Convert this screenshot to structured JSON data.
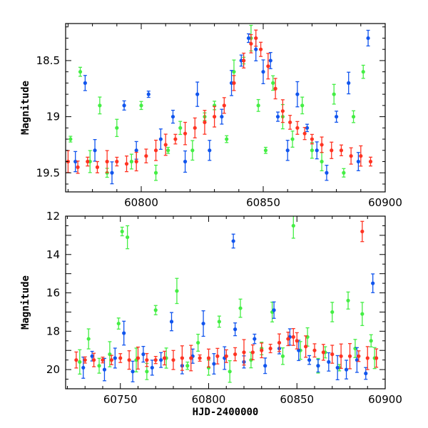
{
  "colors": {
    "green": "#44ee44",
    "blue": "#1155ee",
    "red": "#ff3322",
    "axis": "#000000"
  },
  "chart_data": [
    {
      "type": "scatter",
      "panel": "top",
      "title": "",
      "xlabel": "",
      "ylabel": "Magnitude",
      "xlim": [
        60769,
        60900
      ],
      "ylim": [
        19.67,
        18.17
      ],
      "y_inverted": true,
      "x_ticks": [
        60800,
        60850,
        60900
      ],
      "y_ticks": [
        18.5,
        19,
        19.5
      ],
      "grid": false,
      "error_bars": true,
      "series": [
        {
          "color_key": "green",
          "x": [
            60771,
            60775,
            60779,
            60783,
            60786,
            60790,
            60796,
            60800,
            60806,
            60811,
            60816,
            60821,
            60826,
            60830,
            60835,
            60838,
            60842,
            60845,
            60848,
            60851,
            60854,
            60858,
            60862,
            60866,
            60870,
            60874,
            60879,
            60883,
            60887,
            60891
          ],
          "y": [
            19.2,
            18.6,
            19.4,
            18.9,
            19.5,
            19.1,
            19.4,
            18.9,
            19.5,
            19.3,
            19.1,
            19.3,
            19.0,
            18.9,
            19.2,
            18.6,
            18.5,
            18.3,
            18.9,
            19.3,
            18.7,
            19.0,
            19.2,
            18.9,
            19.3,
            19.4,
            18.8,
            19.5,
            19.0,
            18.6
          ]
        },
        {
          "color_key": "blue",
          "x": [
            60773,
            60777,
            60781,
            60788,
            60793,
            60798,
            60803,
            60808,
            60813,
            60818,
            60823,
            60828,
            60833,
            60837,
            60841,
            60844,
            60847,
            60850,
            60853,
            60856,
            60860,
            60864,
            60868,
            60872,
            60876,
            60880,
            60885,
            60889,
            60893
          ],
          "y": [
            19.4,
            18.7,
            19.3,
            19.5,
            18.9,
            19.3,
            18.8,
            19.2,
            19.0,
            19.4,
            18.8,
            19.3,
            19.0,
            18.7,
            18.5,
            18.3,
            18.4,
            18.6,
            18.5,
            19.0,
            19.3,
            18.8,
            19.1,
            19.3,
            19.5,
            19.0,
            18.7,
            19.4,
            18.3
          ]
        },
        {
          "color_key": "red",
          "x": [
            60770,
            60774,
            60778,
            60782,
            60786,
            60790,
            60794,
            60798,
            60802,
            60806,
            60810,
            60814,
            60818,
            60822,
            60826,
            60830,
            60834,
            60838,
            60842,
            60845,
            60847,
            60849,
            60852,
            60855,
            60858,
            60861,
            60864,
            60867,
            60870,
            60874,
            60878,
            60882,
            60886,
            60890,
            60894
          ],
          "y": [
            19.4,
            19.45,
            19.4,
            19.45,
            19.4,
            19.4,
            19.42,
            19.4,
            19.35,
            19.3,
            19.25,
            19.2,
            19.15,
            19.1,
            19.05,
            19.0,
            18.9,
            18.7,
            18.5,
            18.35,
            18.3,
            18.4,
            18.55,
            18.75,
            18.95,
            19.05,
            19.1,
            19.15,
            19.2,
            19.25,
            19.3,
            19.3,
            19.35,
            19.35,
            19.4
          ]
        }
      ]
    },
    {
      "type": "scatter",
      "panel": "bottom",
      "title": "",
      "xlabel": "HJD-2400000",
      "ylabel": "Magnitude",
      "xlim": [
        60719,
        60900
      ],
      "ylim": [
        21,
        12
      ],
      "y_inverted": true,
      "x_ticks": [
        60750,
        60800,
        60850,
        60900
      ],
      "y_ticks": [
        12,
        14,
        16,
        18,
        20
      ],
      "grid": false,
      "error_bars": true,
      "series": [
        {
          "color_key": "green",
          "x": [
            60727,
            60732,
            60738,
            60744,
            60749,
            60751,
            60754,
            60759,
            60765,
            60770,
            60776,
            60782,
            60788,
            60794,
            60800,
            60806,
            60812,
            60818,
            60824,
            60830,
            60836,
            60842,
            60848,
            60852,
            60856,
            60862,
            60866,
            60870,
            60874,
            60879,
            60883,
            60887,
            60892,
            60894
          ],
          "y": [
            19.6,
            18.4,
            19.8,
            19.2,
            17.6,
            12.8,
            13.1,
            19.5,
            20.1,
            16.9,
            19.4,
            15.9,
            19.8,
            18.6,
            19.9,
            17.5,
            20.1,
            16.8,
            19.5,
            18.9,
            17.0,
            19.3,
            12.5,
            19.0,
            18.3,
            19.8,
            19.1,
            17.0,
            19.9,
            16.4,
            18.9,
            17.1,
            18.5,
            19.4
          ]
        },
        {
          "color_key": "blue",
          "x": [
            60729,
            60734,
            60741,
            60747,
            60752,
            60757,
            60763,
            60768,
            60773,
            60779,
            60785,
            60791,
            60797,
            60803,
            60809,
            60814,
            60815,
            60820,
            60826,
            60832,
            60837,
            60840,
            60846,
            60851,
            60857,
            60862,
            60868,
            60873,
            60878,
            60884,
            60889,
            60893
          ],
          "y": [
            19.9,
            19.3,
            20.0,
            19.4,
            18.1,
            20.1,
            19.2,
            19.9,
            19.5,
            17.5,
            19.8,
            19.3,
            17.6,
            19.7,
            19.4,
            13.3,
            17.9,
            19.6,
            18.4,
            19.8,
            16.9,
            18.9,
            18.3,
            19.0,
            19.5,
            19.8,
            19.6,
            19.9,
            20.0,
            19.5,
            20.2,
            15.5
          ]
        },
        {
          "color_key": "red",
          "x": [
            60725,
            60730,
            60735,
            60740,
            60745,
            60750,
            60755,
            60760,
            60765,
            60770,
            60775,
            60780,
            60785,
            60790,
            60795,
            60800,
            60805,
            60810,
            60815,
            60820,
            60825,
            60830,
            60835,
            60840,
            60845,
            60848,
            60850,
            60855,
            60860,
            60865,
            60870,
            60875,
            60880,
            60885,
            60887,
            60890,
            60895
          ],
          "y": [
            19.5,
            19.5,
            19.5,
            19.5,
            19.5,
            19.4,
            19.5,
            19.4,
            19.5,
            19.5,
            19.4,
            19.5,
            19.4,
            19.4,
            19.4,
            19.4,
            19.3,
            19.3,
            19.2,
            19.1,
            19.1,
            19.0,
            18.9,
            18.6,
            18.4,
            18.3,
            18.5,
            18.8,
            19.0,
            19.1,
            19.2,
            19.3,
            19.3,
            19.3,
            12.8,
            19.4,
            19.4
          ]
        }
      ]
    }
  ]
}
